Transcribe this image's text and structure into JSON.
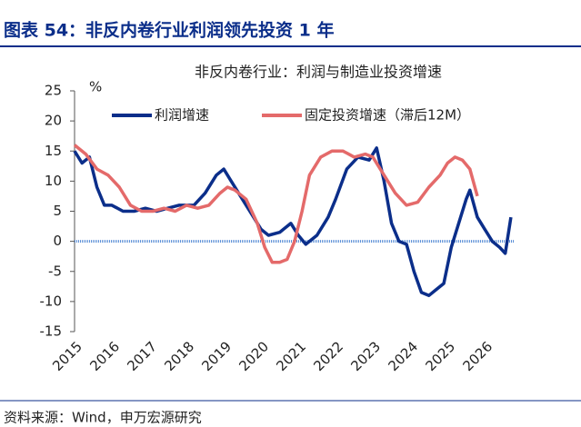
{
  "header": {
    "title": "图表 54：非反内卷行业利润领先投资 1 年"
  },
  "source": "资料来源：Wind，申万宏源研究",
  "chart_data": {
    "type": "line",
    "title": "非反内卷行业：利润与制造业投资增速",
    "y_label": "%",
    "xlim": [
      2015,
      2026.8
    ],
    "xticks": [
      2015,
      2016,
      2017,
      2018,
      2019,
      2020,
      2021,
      2022,
      2023,
      2024,
      2025,
      2026
    ],
    "ylim": [
      -15,
      25
    ],
    "yticks": [
      -15,
      -10,
      -5,
      0,
      5,
      10,
      15,
      20,
      25
    ],
    "series": [
      {
        "name": "利润增速",
        "color": "#0b2e8a",
        "x": [
          2015.0,
          2015.2,
          2015.4,
          2015.6,
          2015.8,
          2016.0,
          2016.3,
          2016.6,
          2016.9,
          2017.2,
          2017.5,
          2017.8,
          2018.2,
          2018.5,
          2018.8,
          2019.0,
          2019.2,
          2019.5,
          2019.8,
          2020.0,
          2020.2,
          2020.5,
          2020.8,
          2021.0,
          2021.2,
          2021.5,
          2021.8,
          2022.0,
          2022.3,
          2022.6,
          2022.9,
          2023.1,
          2023.3,
          2023.5,
          2023.7,
          2023.9,
          2024.1,
          2024.3,
          2024.5,
          2024.7,
          2024.9,
          2025.1,
          2025.3,
          2025.5,
          2025.6,
          2025.8,
          2026.0,
          2026.2,
          2026.4,
          2026.55,
          2026.7
        ],
        "values": [
          15,
          13,
          14,
          9,
          6,
          6,
          5,
          5,
          5.5,
          5,
          5.5,
          6,
          6,
          8,
          11,
          12,
          10,
          7,
          4,
          2,
          1,
          1.5,
          3,
          1,
          -0.5,
          1,
          4,
          7,
          12,
          14,
          13.5,
          15.5,
          10,
          3,
          0,
          -0.5,
          -5,
          -8.5,
          -9,
          -8,
          -7,
          -1,
          3,
          7,
          8.5,
          4,
          2,
          0,
          -1,
          -2,
          4
        ]
      },
      {
        "name": "固定投资增速（滞后12M）",
        "color": "#e46a6a",
        "x": [
          2015.0,
          2015.3,
          2015.6,
          2015.9,
          2016.2,
          2016.5,
          2016.8,
          2017.1,
          2017.4,
          2017.7,
          2018.0,
          2018.3,
          2018.6,
          2018.9,
          2019.1,
          2019.3,
          2019.6,
          2019.9,
          2020.1,
          2020.3,
          2020.5,
          2020.7,
          2020.9,
          2021.1,
          2021.3,
          2021.6,
          2021.9,
          2022.2,
          2022.5,
          2022.8,
          2023.0,
          2023.3,
          2023.6,
          2023.9,
          2024.2,
          2024.5,
          2024.8,
          2025.0,
          2025.2,
          2025.4,
          2025.6,
          2025.8
        ],
        "values": [
          16,
          14.5,
          12,
          11,
          9,
          6,
          5,
          5,
          5.5,
          5,
          6,
          5.5,
          6,
          8,
          9,
          8.5,
          7,
          3,
          -1,
          -3.5,
          -3.5,
          -3,
          0,
          5,
          11,
          14,
          15,
          15,
          14,
          14.5,
          14,
          11,
          8,
          6,
          6.5,
          9,
          11,
          13,
          14,
          13.5,
          12,
          7.5
        ]
      }
    ]
  }
}
